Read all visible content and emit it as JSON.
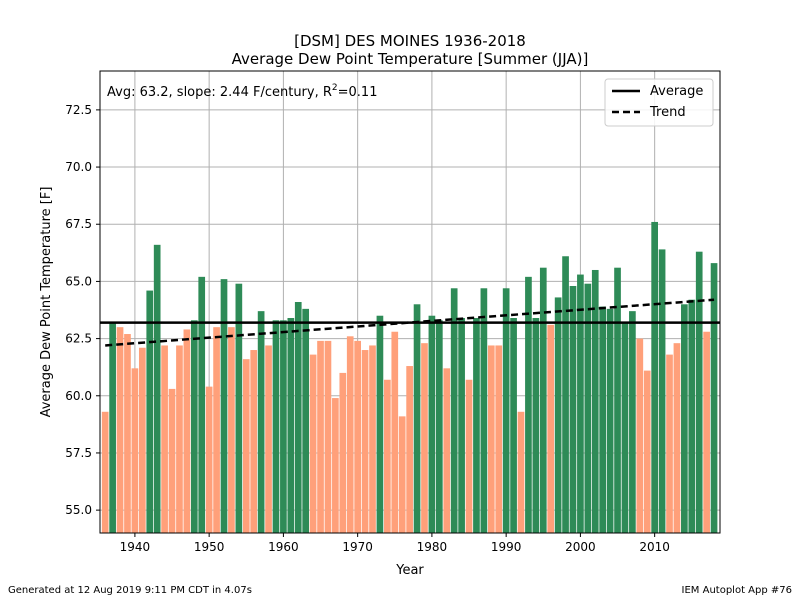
{
  "chart_data": {
    "type": "bar",
    "title_line1": "[DSM] DES MOINES 1936-2018",
    "title_line2": "Average Dew Point Temperature [Summer (JJA)]",
    "xlabel": "Year",
    "ylabel": "Average Dew Point Temperature [F]",
    "annotation_prefix": "Avg: 63.2, slope: 2.44 F/century, R",
    "annotation_sup": "2",
    "annotation_suffix": "=0.11",
    "xlim": [
      1935.3,
      2018.8
    ],
    "ylim": [
      54.0,
      74.2
    ],
    "xticks": [
      1940,
      1950,
      1960,
      1970,
      1980,
      1990,
      2000,
      2010
    ],
    "yticks": [
      55.0,
      57.5,
      60.0,
      62.5,
      65.0,
      67.5,
      70.0,
      72.5
    ],
    "ytick_labels": [
      "55.0",
      "57.5",
      "60.0",
      "62.5",
      "65.0",
      "67.5",
      "70.0",
      "72.5"
    ],
    "grid": true,
    "legend_position": "top-right",
    "legend": [
      {
        "label": "Average",
        "style": "solid"
      },
      {
        "label": "Trend",
        "style": "dashed"
      }
    ],
    "average": 63.2,
    "trend": {
      "x_start": 1936,
      "y_start": 62.2,
      "x_end": 2018,
      "y_end": 64.2
    },
    "colors": {
      "above": "#2e8b57",
      "below": "#ffa07a",
      "line": "#000000",
      "grid": "#b0b0b0"
    },
    "years": [
      1936,
      1937,
      1938,
      1939,
      1940,
      1941,
      1942,
      1943,
      1944,
      1945,
      1946,
      1947,
      1948,
      1949,
      1950,
      1951,
      1952,
      1953,
      1954,
      1955,
      1956,
      1957,
      1958,
      1959,
      1960,
      1961,
      1962,
      1963,
      1964,
      1965,
      1966,
      1967,
      1968,
      1969,
      1970,
      1971,
      1972,
      1973,
      1974,
      1975,
      1976,
      1977,
      1978,
      1979,
      1980,
      1981,
      1982,
      1983,
      1984,
      1985,
      1986,
      1987,
      1988,
      1989,
      1990,
      1991,
      1992,
      1993,
      1994,
      1995,
      1996,
      1997,
      1998,
      1999,
      2000,
      2001,
      2002,
      2003,
      2004,
      2005,
      2006,
      2007,
      2008,
      2009,
      2010,
      2011,
      2012,
      2013,
      2014,
      2015,
      2016,
      2017,
      2018
    ],
    "values": [
      59.3,
      63.2,
      63.0,
      62.7,
      61.2,
      62.1,
      64.6,
      66.6,
      62.2,
      60.3,
      62.2,
      62.9,
      63.3,
      65.2,
      60.4,
      63.0,
      65.1,
      63.0,
      64.9,
      61.6,
      62.0,
      63.7,
      62.2,
      63.3,
      63.3,
      63.4,
      64.1,
      63.8,
      61.8,
      62.4,
      62.4,
      59.9,
      61.0,
      62.6,
      62.4,
      62.0,
      62.2,
      63.5,
      60.7,
      62.8,
      59.1,
      61.3,
      64.0,
      62.3,
      63.5,
      63.3,
      61.2,
      64.7,
      63.4,
      60.7,
      63.4,
      64.7,
      62.2,
      62.2,
      64.7,
      63.4,
      59.3,
      65.2,
      63.4,
      65.6,
      63.1,
      64.3,
      66.1,
      64.8,
      65.3,
      64.9,
      65.5,
      63.9,
      63.8,
      65.6,
      63.2,
      63.7,
      62.5,
      61.1,
      67.6,
      66.4,
      61.8,
      62.3,
      64.0,
      64.2,
      66.3,
      62.8,
      65.8
    ]
  },
  "footer": {
    "left": "Generated at 12 Aug 2019 9:11 PM CDT in 4.07s",
    "right": "IEM Autoplot App #76"
  }
}
